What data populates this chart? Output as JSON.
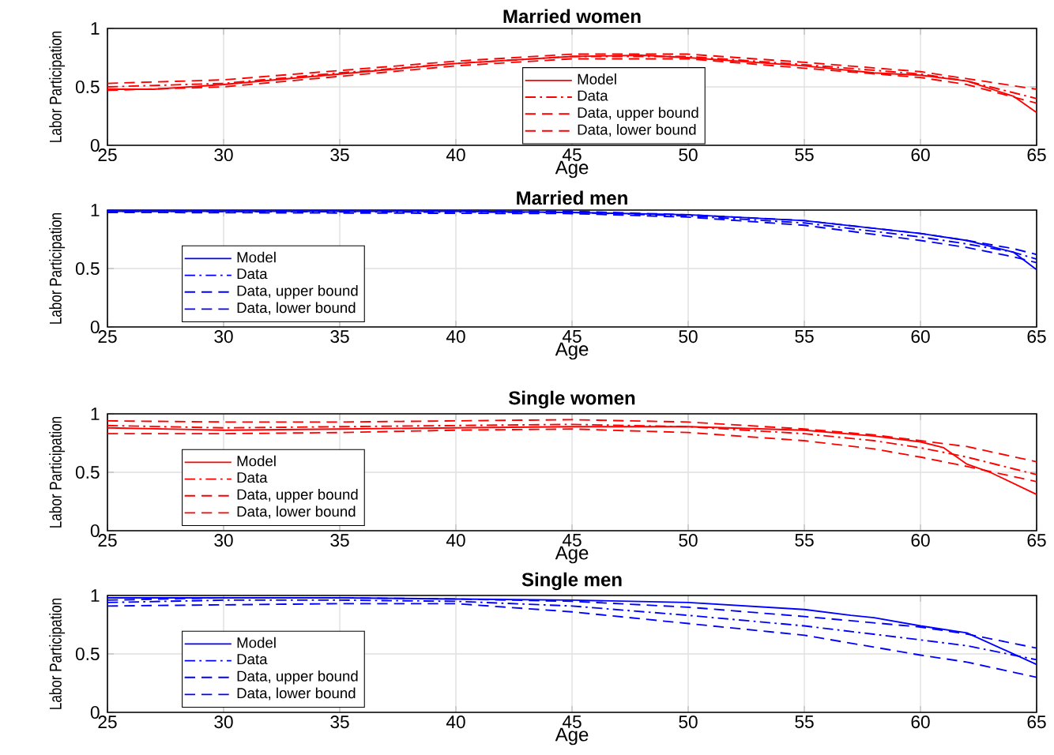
{
  "chart_data": [
    {
      "type": "line",
      "title": "Married women",
      "xlabel": "Age",
      "ylabel": "Labor Participation",
      "xlim": [
        25,
        65
      ],
      "ylim": [
        0,
        1
      ],
      "xticks": [
        25,
        30,
        35,
        40,
        45,
        50,
        55,
        60,
        65
      ],
      "yticks": [
        0,
        0.5,
        1
      ],
      "grid": true,
      "legend": "bottom",
      "series": [
        {
          "name": "Model",
          "color": "#ff0000",
          "line_style": "solid",
          "x": [
            25,
            27,
            30,
            35,
            40,
            45,
            48,
            50,
            55,
            58,
            60,
            62,
            64,
            65
          ],
          "values": [
            0.48,
            0.48,
            0.52,
            0.61,
            0.7,
            0.76,
            0.77,
            0.75,
            0.68,
            0.62,
            0.6,
            0.55,
            0.42,
            0.28
          ]
        },
        {
          "name": "Data",
          "color": "#ff0000",
          "line_style": "dashdot",
          "x": [
            25,
            30,
            35,
            40,
            45,
            50,
            55,
            60,
            62,
            65
          ],
          "values": [
            0.5,
            0.53,
            0.62,
            0.7,
            0.76,
            0.76,
            0.69,
            0.61,
            0.55,
            0.4
          ]
        },
        {
          "name": "Data, upper bound",
          "color": "#ff0000",
          "line_style": "dashed",
          "x": [
            25,
            30,
            35,
            40,
            45,
            50,
            55,
            60,
            62,
            65
          ],
          "values": [
            0.53,
            0.56,
            0.64,
            0.72,
            0.78,
            0.78,
            0.71,
            0.63,
            0.57,
            0.48
          ]
        },
        {
          "name": "Data, lower bound",
          "color": "#ff0000",
          "line_style": "dashed",
          "x": [
            25,
            30,
            35,
            40,
            45,
            50,
            55,
            60,
            62,
            65
          ],
          "values": [
            0.47,
            0.5,
            0.59,
            0.68,
            0.74,
            0.74,
            0.66,
            0.58,
            0.52,
            0.36
          ]
        }
      ]
    },
    {
      "type": "line",
      "title": "Married men",
      "xlabel": "Age",
      "ylabel": "Labor Participation",
      "xlim": [
        25,
        65
      ],
      "ylim": [
        0,
        1
      ],
      "xticks": [
        25,
        30,
        35,
        40,
        45,
        50,
        55,
        60,
        65
      ],
      "yticks": [
        0,
        0.5,
        1
      ],
      "grid": true,
      "legend": "left",
      "series": [
        {
          "name": "Model",
          "color": "#0000ff",
          "line_style": "solid",
          "x": [
            25,
            40,
            45,
            50,
            55,
            60,
            62,
            64,
            65
          ],
          "values": [
            0.99,
            0.99,
            0.98,
            0.96,
            0.91,
            0.8,
            0.74,
            0.64,
            0.49
          ]
        },
        {
          "name": "Data",
          "color": "#0000ff",
          "line_style": "dashdot",
          "x": [
            25,
            45,
            50,
            55,
            60,
            62,
            64,
            65
          ],
          "values": [
            0.99,
            0.98,
            0.95,
            0.89,
            0.77,
            0.71,
            0.64,
            0.58
          ]
        },
        {
          "name": "Data, upper bound",
          "color": "#0000ff",
          "line_style": "dashed",
          "x": [
            25,
            45,
            50,
            55,
            60,
            62,
            64,
            65
          ],
          "values": [
            1.0,
            0.99,
            0.96,
            0.91,
            0.8,
            0.74,
            0.67,
            0.62
          ]
        },
        {
          "name": "Data, lower bound",
          "color": "#0000ff",
          "line_style": "dashed",
          "x": [
            25,
            45,
            50,
            55,
            60,
            62,
            64,
            65
          ],
          "values": [
            0.98,
            0.97,
            0.94,
            0.87,
            0.74,
            0.68,
            0.6,
            0.55
          ]
        }
      ]
    },
    {
      "type": "line",
      "title": "Single women",
      "xlabel": "Age",
      "ylabel": "Labor Participation",
      "xlim": [
        25,
        65
      ],
      "ylim": [
        0,
        1
      ],
      "xticks": [
        25,
        30,
        35,
        40,
        45,
        50,
        55,
        60,
        65
      ],
      "yticks": [
        0,
        0.5,
        1
      ],
      "grid": true,
      "legend": "left",
      "series": [
        {
          "name": "Model",
          "color": "#ff0000",
          "line_style": "solid",
          "x": [
            25,
            30,
            35,
            40,
            45,
            50,
            55,
            58,
            60,
            61,
            62,
            63,
            65
          ],
          "values": [
            0.88,
            0.86,
            0.87,
            0.88,
            0.89,
            0.89,
            0.86,
            0.81,
            0.76,
            0.71,
            0.57,
            0.5,
            0.31
          ]
        },
        {
          "name": "Data",
          "color": "#ff0000",
          "line_style": "dashdot",
          "x": [
            25,
            30,
            35,
            40,
            45,
            50,
            55,
            58,
            60,
            62,
            65
          ],
          "values": [
            0.9,
            0.88,
            0.89,
            0.9,
            0.91,
            0.89,
            0.83,
            0.77,
            0.71,
            0.63,
            0.48
          ]
        },
        {
          "name": "Data, upper bound",
          "color": "#ff0000",
          "line_style": "dashed",
          "x": [
            25,
            30,
            35,
            40,
            45,
            50,
            55,
            58,
            60,
            62,
            65
          ],
          "values": [
            0.94,
            0.93,
            0.93,
            0.94,
            0.95,
            0.93,
            0.87,
            0.82,
            0.77,
            0.72,
            0.59
          ]
        },
        {
          "name": "Data, lower bound",
          "color": "#ff0000",
          "line_style": "dashed",
          "x": [
            25,
            30,
            35,
            40,
            45,
            50,
            55,
            58,
            60,
            62,
            65
          ],
          "values": [
            0.83,
            0.83,
            0.84,
            0.86,
            0.87,
            0.84,
            0.77,
            0.7,
            0.63,
            0.55,
            0.42
          ]
        }
      ]
    },
    {
      "type": "line",
      "title": "Single men",
      "xlabel": "Age",
      "ylabel": "Labor Participation",
      "xlim": [
        25,
        65
      ],
      "ylim": [
        0,
        1
      ],
      "xticks": [
        25,
        30,
        35,
        40,
        45,
        50,
        55,
        60,
        65
      ],
      "yticks": [
        0,
        0.5,
        1
      ],
      "grid": true,
      "legend": "left",
      "series": [
        {
          "name": "Model",
          "color": "#0000ff",
          "line_style": "solid",
          "x": [
            25,
            30,
            35,
            40,
            45,
            50,
            55,
            57,
            58,
            60,
            62,
            65
          ],
          "values": [
            0.98,
            0.98,
            0.98,
            0.97,
            0.96,
            0.94,
            0.88,
            0.83,
            0.81,
            0.74,
            0.68,
            0.41
          ]
        },
        {
          "name": "Data",
          "color": "#0000ff",
          "line_style": "dashdot",
          "x": [
            25,
            30,
            35,
            40,
            45,
            50,
            55,
            60,
            62,
            65
          ],
          "values": [
            0.94,
            0.96,
            0.96,
            0.95,
            0.91,
            0.83,
            0.74,
            0.62,
            0.57,
            0.45
          ]
        },
        {
          "name": "Data, upper bound",
          "color": "#0000ff",
          "line_style": "dashed",
          "x": [
            25,
            30,
            35,
            40,
            45,
            50,
            55,
            60,
            62,
            65
          ],
          "values": [
            0.96,
            0.98,
            0.98,
            0.97,
            0.95,
            0.9,
            0.82,
            0.73,
            0.67,
            0.55
          ]
        },
        {
          "name": "Data, lower bound",
          "color": "#0000ff",
          "line_style": "dashed",
          "x": [
            25,
            30,
            35,
            40,
            45,
            50,
            55,
            60,
            62,
            65
          ],
          "values": [
            0.91,
            0.92,
            0.93,
            0.93,
            0.86,
            0.76,
            0.66,
            0.49,
            0.43,
            0.3
          ]
        }
      ]
    }
  ]
}
